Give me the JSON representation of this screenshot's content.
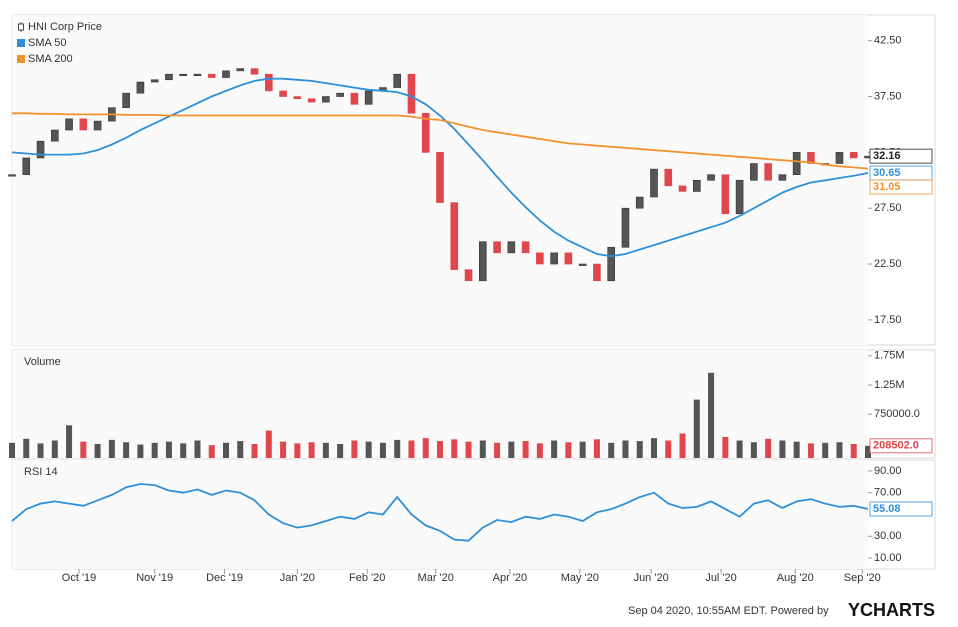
{
  "chart_data": [
    {
      "type": "candlestick",
      "xlim": [
        0,
        60
      ],
      "ylim": [
        15.25,
        44.8
      ],
      "yticks": [
        {
          "value": 17.5,
          "label": "17.50"
        },
        {
          "value": 22.5,
          "label": "22.50"
        },
        {
          "value": 27.5,
          "label": "27.50"
        },
        {
          "value": 32.5,
          "label": "32.50"
        },
        {
          "value": 37.5,
          "label": "37.50"
        },
        {
          "value": 42.5,
          "label": "42.50"
        }
      ],
      "series": [
        {
          "name": "HNI Corp Price",
          "type": "candlestick",
          "color": "#222222",
          "up_color": "#555555",
          "down_color": "#e0474c",
          "values": [
            30.5,
            32,
            33.5,
            34.5,
            35.5,
            34.5,
            35.3,
            36.5,
            37.8,
            38.8,
            39,
            39.5,
            39.5,
            39.5,
            39.2,
            39.8,
            40,
            39.5,
            38,
            37.5,
            37.3,
            37,
            37.5,
            37.8,
            36.8,
            38,
            38.3,
            39.5,
            36,
            32.5,
            28,
            22,
            21,
            24.5,
            23.5,
            24.5,
            23.5,
            22.5,
            23.5,
            22.5,
            22.5,
            21,
            24,
            27.5,
            28.5,
            31,
            29.5,
            29,
            30,
            30.5,
            27,
            30,
            31.5,
            30,
            30.5,
            32.5,
            31.5,
            31.5,
            32.5,
            32,
            32.16
          ]
        },
        {
          "name": "SMA 50",
          "type": "line",
          "color": "#2f8fd8",
          "values": [
            32.5,
            32.4,
            32.3,
            32.3,
            32.3,
            32.4,
            32.7,
            33.2,
            33.8,
            34.5,
            35.1,
            35.7,
            36.3,
            36.9,
            37.5,
            38.0,
            38.5,
            38.9,
            39.1,
            39.1,
            39.0,
            38.9,
            38.7,
            38.5,
            38.3,
            38.1,
            38.0,
            37.9,
            37.5,
            36.8,
            35.8,
            34.6,
            33.2,
            31.8,
            30.3,
            28.9,
            27.6,
            26.4,
            25.4,
            24.6,
            24.0,
            23.4,
            23.2,
            23.4,
            23.8,
            24.2,
            24.6,
            25.0,
            25.4,
            25.8,
            26.2,
            26.8,
            27.5,
            28.2,
            28.9,
            29.4,
            29.8,
            30.0,
            30.2,
            30.4,
            30.65
          ]
        },
        {
          "name": "SMA 200",
          "type": "line",
          "color": "#f0922e",
          "values": [
            36.0,
            36.0,
            35.95,
            35.95,
            35.9,
            35.9,
            35.9,
            35.9,
            35.85,
            35.85,
            35.85,
            35.8,
            35.8,
            35.8,
            35.8,
            35.8,
            35.8,
            35.8,
            35.8,
            35.8,
            35.8,
            35.8,
            35.8,
            35.8,
            35.8,
            35.8,
            35.8,
            35.8,
            35.7,
            35.5,
            35.4,
            35.1,
            34.8,
            34.5,
            34.3,
            34.1,
            33.9,
            33.7,
            33.5,
            33.3,
            33.2,
            33.1,
            33.0,
            32.9,
            32.8,
            32.7,
            32.6,
            32.5,
            32.4,
            32.3,
            32.2,
            32.1,
            32.0,
            31.9,
            31.8,
            31.7,
            31.6,
            31.4,
            31.25,
            31.15,
            31.05
          ]
        }
      ]
    },
    {
      "type": "bar",
      "title": "Volume",
      "xlim": [
        0,
        60
      ],
      "ylim": [
        0,
        1850000
      ],
      "yticks": [
        {
          "value": 750000,
          "label": "750000.0"
        },
        {
          "value": 1250000,
          "label": "1.25M"
        },
        {
          "value": 1750000,
          "label": "1.75M"
        }
      ],
      "series": [
        {
          "name": "Volume",
          "type": "bar",
          "color": "#e0474c",
          "up_color": "#555555",
          "down_color": "#e0474c",
          "values": [
            260000,
            330000,
            250000,
            300000,
            560000,
            280000,
            240000,
            310000,
            270000,
            230000,
            260000,
            280000,
            250000,
            300000,
            220000,
            260000,
            290000,
            240000,
            470000,
            280000,
            250000,
            270000,
            260000,
            240000,
            300000,
            280000,
            260000,
            310000,
            300000,
            340000,
            290000,
            320000,
            280000,
            300000,
            260000,
            280000,
            290000,
            250000,
            300000,
            270000,
            280000,
            320000,
            260000,
            300000,
            290000,
            340000,
            300000,
            420000,
            1000000,
            1460000,
            360000,
            300000,
            270000,
            330000,
            300000,
            280000,
            250000,
            260000,
            270000,
            240000,
            208502
          ],
          "value_labels": [
            null,
            null,
            null,
            null,
            null,
            null,
            null,
            null,
            null,
            null,
            null,
            null,
            null,
            null,
            null,
            null,
            null,
            null,
            null,
            null,
            null,
            null,
            null,
            null,
            null,
            null,
            null,
            null,
            null,
            null,
            null,
            null,
            null,
            null,
            null,
            null,
            null,
            null,
            null,
            null,
            null,
            null,
            null,
            null,
            null,
            null,
            null,
            null,
            null,
            null,
            null,
            null,
            null,
            null,
            null,
            null,
            null,
            null,
            null,
            null,
            "208502.0"
          ]
        }
      ]
    },
    {
      "type": "line",
      "title": "RSI 14",
      "xlim": [
        0,
        60
      ],
      "ylim": [
        0,
        100
      ],
      "yticks": [
        {
          "value": 10,
          "label": "10.00"
        },
        {
          "value": 30,
          "label": "30.00"
        },
        {
          "value": 70,
          "label": "70.00"
        },
        {
          "value": 90,
          "label": "90.00"
        }
      ],
      "xticks": [
        {
          "value": 4.7,
          "label": "Oct '19"
        },
        {
          "value": 10.0,
          "label": "Nov '19"
        },
        {
          "value": 14.9,
          "label": "Dec '19"
        },
        {
          "value": 20.0,
          "label": "Jan '20"
        },
        {
          "value": 24.9,
          "label": "Feb '20"
        },
        {
          "value": 29.7,
          "label": "Mar '20"
        },
        {
          "value": 34.9,
          "label": "Apr '20"
        },
        {
          "value": 39.8,
          "label": "May '20"
        },
        {
          "value": 44.8,
          "label": "Jun '20"
        },
        {
          "value": 49.7,
          "label": "Jul '20"
        },
        {
          "value": 54.9,
          "label": "Aug '20"
        },
        {
          "value": 59.6,
          "label": "Sep '20"
        }
      ],
      "series": [
        {
          "name": "RSI 14",
          "type": "line",
          "color": "#2f8fd8",
          "values": [
            44,
            55,
            60,
            62,
            60,
            58,
            63,
            68,
            75,
            78,
            77,
            72,
            70,
            73,
            68,
            72,
            70,
            63,
            50,
            42,
            38,
            40,
            44,
            48,
            46,
            52,
            50,
            66,
            50,
            40,
            35,
            27,
            26,
            38,
            45,
            43,
            48,
            46,
            50,
            48,
            44,
            52,
            55,
            60,
            66,
            70,
            60,
            56,
            57,
            62,
            55,
            48,
            60,
            63,
            56,
            62,
            64,
            60,
            57,
            58,
            55.08
          ]
        }
      ]
    }
  ],
  "footer": {
    "text": "Sep 04 2020, 10:55AM EDT. Powered by",
    "brand": "YCHARTS"
  }
}
